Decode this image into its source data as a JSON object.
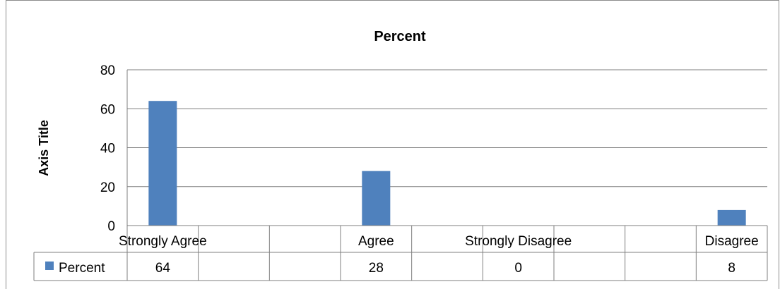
{
  "chart_data": {
    "type": "bar",
    "title": "Percent",
    "ylabel": "Axis Title",
    "xlabel": "",
    "ylim": [
      0,
      80
    ],
    "yticks": [
      0,
      20,
      40,
      60,
      80
    ],
    "categories": [
      "Strongly Agree",
      "",
      "",
      "Agree",
      "",
      "Strongly Disagree",
      "",
      "",
      "Disagree"
    ],
    "series": [
      {
        "name": "Percent",
        "color": "#4f81bd",
        "values": [
          64,
          null,
          null,
          28,
          null,
          0,
          null,
          null,
          8
        ]
      }
    ],
    "grid": true,
    "legend": "data-table",
    "data_table": true
  }
}
